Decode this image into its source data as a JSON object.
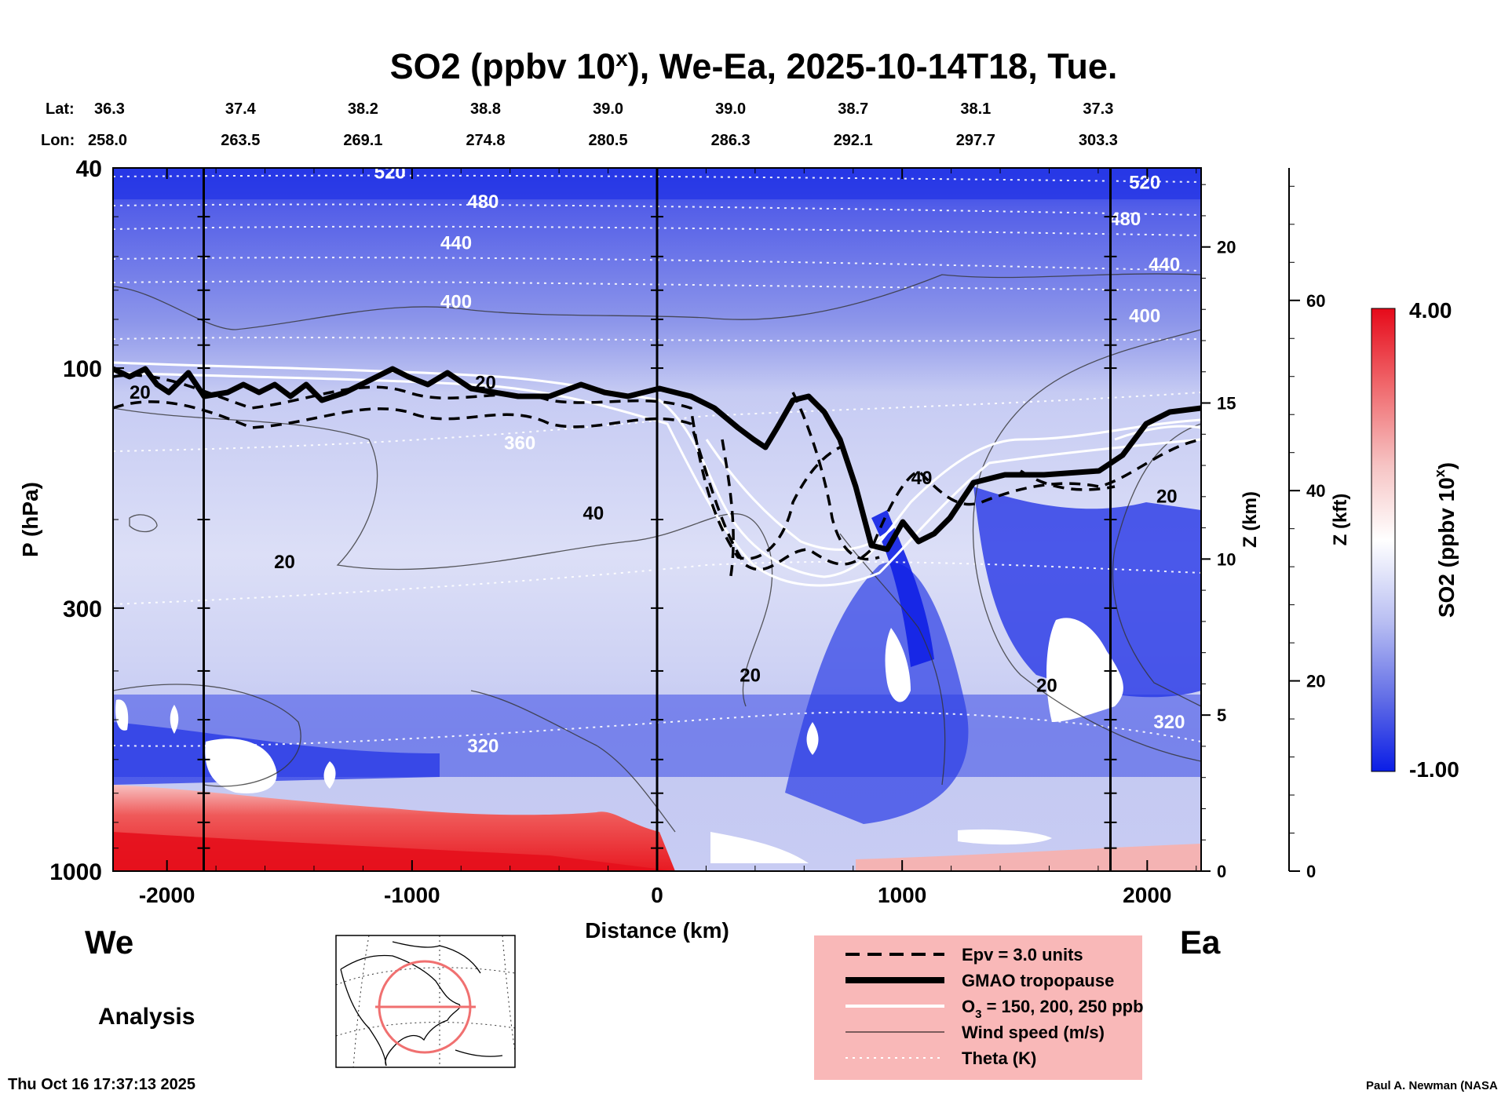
{
  "chart_data": {
    "type": "heatmap",
    "title": "SO2 (ppbv 10x), We-Ea, 2025-10-14T18, Tue.",
    "title_parts": {
      "main": "SO2 (ppbv 10",
      "sup": "x",
      "rest": "), We-Ea, 2025-10-14T18, Tue."
    },
    "lat_label": "Lat:",
    "lon_label": "Lon:",
    "lat_values": [
      "36.3",
      "37.4",
      "38.2",
      "38.8",
      "39.0",
      "39.0",
      "38.7",
      "38.1",
      "37.3"
    ],
    "lon_values": [
      "258.0",
      "263.5",
      "269.1",
      "274.8",
      "280.5",
      "286.3",
      "292.1",
      "297.7",
      "303.3"
    ],
    "latlon_distances_km": [
      -2200,
      -1700,
      -1200,
      -700,
      -200,
      300,
      800,
      1300,
      1800
    ],
    "xlabel": "Distance (km)",
    "x_range": [
      -2220,
      2220
    ],
    "x_ticks": [
      -2000,
      -1000,
      0,
      1000,
      2000
    ],
    "x_tick_labels": [
      "-2000",
      "-1000",
      "0",
      "1000",
      "2000"
    ],
    "vertical_lines_km": [
      -1850,
      0,
      1850
    ],
    "ylabel": "P (hPa)",
    "y_range": [
      1000,
      40
    ],
    "y_ticks": [
      40,
      100,
      300,
      1000
    ],
    "y_tick_labels": [
      "40",
      "100",
      "300",
      "1000"
    ],
    "z_km_label": "Z (km)",
    "z_km_ticks": [
      "0",
      "5",
      "10",
      "15",
      "20"
    ],
    "z_kft_label": "Z (kft)",
    "z_kft_ticks": [
      "0",
      "20",
      "40",
      "60"
    ],
    "west_label": "We",
    "east_label": "Ea",
    "colorbar": {
      "label_main": "SO2 (ppbv 10",
      "label_sup": "x",
      "label_rest": ")",
      "min": -1.0,
      "max": 4.0,
      "min_label": "-1.00",
      "max_label": "4.00",
      "colors": [
        "#0a1de6",
        "#6f7bea",
        "#c8cdf5",
        "#ffffff",
        "#f7bcbc",
        "#f0505a",
        "#e60a1a"
      ]
    },
    "theta_contour_labels": [
      "520",
      "480",
      "440",
      "400",
      "360",
      "320",
      "520",
      "480",
      "440",
      "400",
      "320"
    ],
    "wind_contour_labels": [
      "20",
      "20",
      "40",
      "20",
      "20",
      "40",
      "20",
      "20"
    ],
    "legend": [
      {
        "style": "dashed",
        "label": "Epv = 3.0 units"
      },
      {
        "style": "thick",
        "label": "GMAO tropopause"
      },
      {
        "style": "white",
        "label_main": "O",
        "label_sub": "3",
        "label_rest": " = 150, 200, 250 ppb"
      },
      {
        "style": "thin",
        "label": "Wind speed (m/s)"
      },
      {
        "style": "dotted",
        "label": "Theta (K)"
      }
    ],
    "analysis_label": "Analysis"
  },
  "footer": {
    "timestamp": "Thu Oct 16 17:37:13 2025",
    "credit": "Paul A. Newman (NASA"
  },
  "colors": {
    "legend_bg": "#f9b8b8",
    "map_track": "#f07070"
  }
}
